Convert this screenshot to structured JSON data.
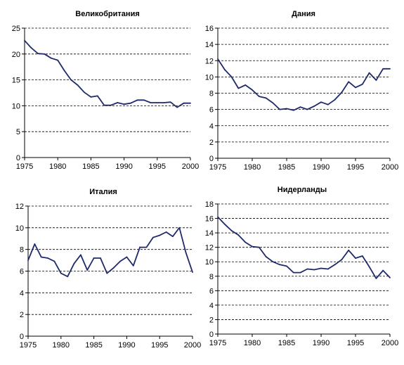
{
  "chart_data": [
    {
      "type": "line",
      "title": "Великобритания",
      "xlabel": "",
      "ylabel": "",
      "x": [
        1975,
        1976,
        1977,
        1978,
        1979,
        1980,
        1981,
        1982,
        1983,
        1984,
        1985,
        1986,
        1987,
        1988,
        1989,
        1990,
        1991,
        1992,
        1993,
        1994,
        1995,
        1996,
        1997,
        1998,
        1999,
        2000
      ],
      "series": [
        {
          "values": [
            22.6,
            21.2,
            20.1,
            20.0,
            19.2,
            18.8,
            16.8,
            15.0,
            14.0,
            12.6,
            11.7,
            11.9,
            10.1,
            10.1,
            10.6,
            10.3,
            10.5,
            11.1,
            11.1,
            10.6,
            10.6,
            10.6,
            10.7,
            9.7,
            10.5,
            10.5
          ]
        }
      ],
      "xlim": [
        1975,
        2000
      ],
      "ylim": [
        0,
        25
      ],
      "xticks": [
        1975,
        1980,
        1985,
        1990,
        1995,
        2000
      ],
      "yticks": [
        0,
        5,
        10,
        15,
        20,
        25
      ],
      "grid": "horizontal dashed",
      "colors": {
        "line": "#1f2a6b",
        "grid": "#000000"
      }
    },
    {
      "type": "line",
      "title": "Дания",
      "xlabel": "",
      "ylabel": "",
      "x": [
        1975,
        1976,
        1977,
        1978,
        1979,
        1980,
        1981,
        1982,
        1983,
        1984,
        1985,
        1986,
        1987,
        1988,
        1989,
        1990,
        1991,
        1992,
        1993,
        1994,
        1995,
        1996,
        1997,
        1998,
        1999,
        2000
      ],
      "series": [
        {
          "values": [
            12.2,
            10.9,
            10.0,
            8.6,
            9.0,
            8.4,
            7.6,
            7.4,
            6.8,
            6.0,
            6.1,
            5.9,
            6.3,
            6.0,
            6.4,
            6.9,
            6.6,
            7.2,
            8.1,
            9.4,
            8.7,
            9.1,
            10.5,
            9.6,
            11.0,
            11.0
          ]
        }
      ],
      "xlim": [
        1975,
        2000
      ],
      "ylim": [
        0,
        16
      ],
      "xticks": [
        1975,
        1980,
        1985,
        1990,
        1995,
        2000
      ],
      "yticks": [
        0,
        2,
        4,
        6,
        8,
        10,
        12,
        14,
        16
      ],
      "grid": "horizontal dashed",
      "colors": {
        "line": "#1f2a6b",
        "grid": "#000000"
      }
    },
    {
      "type": "line",
      "title": "Италия",
      "xlabel": "",
      "ylabel": "",
      "x": [
        1975,
        1976,
        1977,
        1978,
        1979,
        1980,
        1981,
        1982,
        1983,
        1984,
        1985,
        1986,
        1987,
        1988,
        1989,
        1990,
        1991,
        1992,
        1993,
        1994,
        1995,
        1996,
        1997,
        1998,
        1999,
        2000
      ],
      "series": [
        {
          "values": [
            7.0,
            8.5,
            7.3,
            7.2,
            6.9,
            5.8,
            5.5,
            6.7,
            7.5,
            6.1,
            7.2,
            7.2,
            5.8,
            6.3,
            6.9,
            7.3,
            6.5,
            8.2,
            8.2,
            9.1,
            9.3,
            9.6,
            9.2,
            10.0,
            7.7,
            5.9
          ]
        }
      ],
      "xlim": [
        1975,
        2000
      ],
      "ylim": [
        0,
        12
      ],
      "xticks": [
        1975,
        1980,
        1985,
        1990,
        1995,
        2000
      ],
      "yticks": [
        0,
        2,
        4,
        6,
        8,
        10,
        12
      ],
      "grid": "horizontal dashed",
      "colors": {
        "line": "#1f2a6b",
        "grid": "#000000"
      }
    },
    {
      "type": "line",
      "title": "Нидерланды",
      "xlabel": "",
      "ylabel": "",
      "x": [
        1975,
        1976,
        1977,
        1978,
        1979,
        1980,
        1981,
        1982,
        1983,
        1984,
        1985,
        1986,
        1987,
        1988,
        1989,
        1990,
        1991,
        1992,
        1993,
        1994,
        1995,
        1996,
        1997,
        1998,
        1999,
        2000
      ],
      "series": [
        {
          "values": [
            16.2,
            15.2,
            14.3,
            13.7,
            12.7,
            12.1,
            12.0,
            10.7,
            10.0,
            9.6,
            9.4,
            8.5,
            8.5,
            9.0,
            8.9,
            9.1,
            9.0,
            9.6,
            10.3,
            11.6,
            10.5,
            10.8,
            9.3,
            7.7,
            8.8,
            7.8
          ]
        }
      ],
      "xlim": [
        1975,
        2000
      ],
      "ylim": [
        0,
        18
      ],
      "xticks": [
        1975,
        1980,
        1985,
        1990,
        1995,
        2000
      ],
      "yticks": [
        0,
        2,
        4,
        6,
        8,
        10,
        12,
        14,
        16,
        18
      ],
      "grid": "horizontal dashed",
      "colors": {
        "line": "#1f2a6b",
        "grid": "#000000"
      }
    }
  ]
}
